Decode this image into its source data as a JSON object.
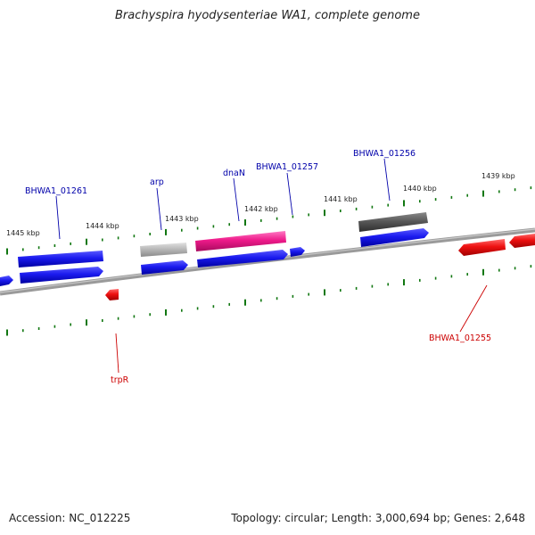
{
  "title": "Brachyspira hyodysenteriae WA1, complete genome",
  "footer": {
    "accession": "Accession: NC_012225",
    "summary": "Topology: circular; Length: 3,000,694 bp; Genes: 2,648"
  },
  "scale_labels": [
    "1445 kbp",
    "1444 kbp",
    "1443 kbp",
    "1442 kbp",
    "1441 kbp",
    "1440 kbp",
    "1439 kbp"
  ],
  "gene_labels": [
    {
      "id": "bhwa1-01261",
      "text": "BHWA1_01261",
      "color": "#0000aa"
    },
    {
      "id": "arp",
      "text": "arp",
      "color": "#0000aa"
    },
    {
      "id": "dnan",
      "text": "dnaN",
      "color": "#0000aa"
    },
    {
      "id": "bhwa1-01257",
      "text": "BHWA1_01257",
      "color": "#0000aa"
    },
    {
      "id": "bhwa1-01256",
      "text": "BHWA1_01256",
      "color": "#0000aa"
    },
    {
      "id": "bhwa1-01255",
      "text": "BHWA1_01255",
      "color": "#cc0000"
    },
    {
      "id": "trpr",
      "text": "trpR",
      "color": "#cc0000"
    }
  ],
  "colors": {
    "forward_gene": "#1a1aee",
    "reverse_gene": "#ee1111",
    "pink_feature": "#ee1a8a",
    "gray_feature": "#b5b5b5",
    "dark_feature": "#555555",
    "backbone": "#777777",
    "tick": "#117711"
  }
}
